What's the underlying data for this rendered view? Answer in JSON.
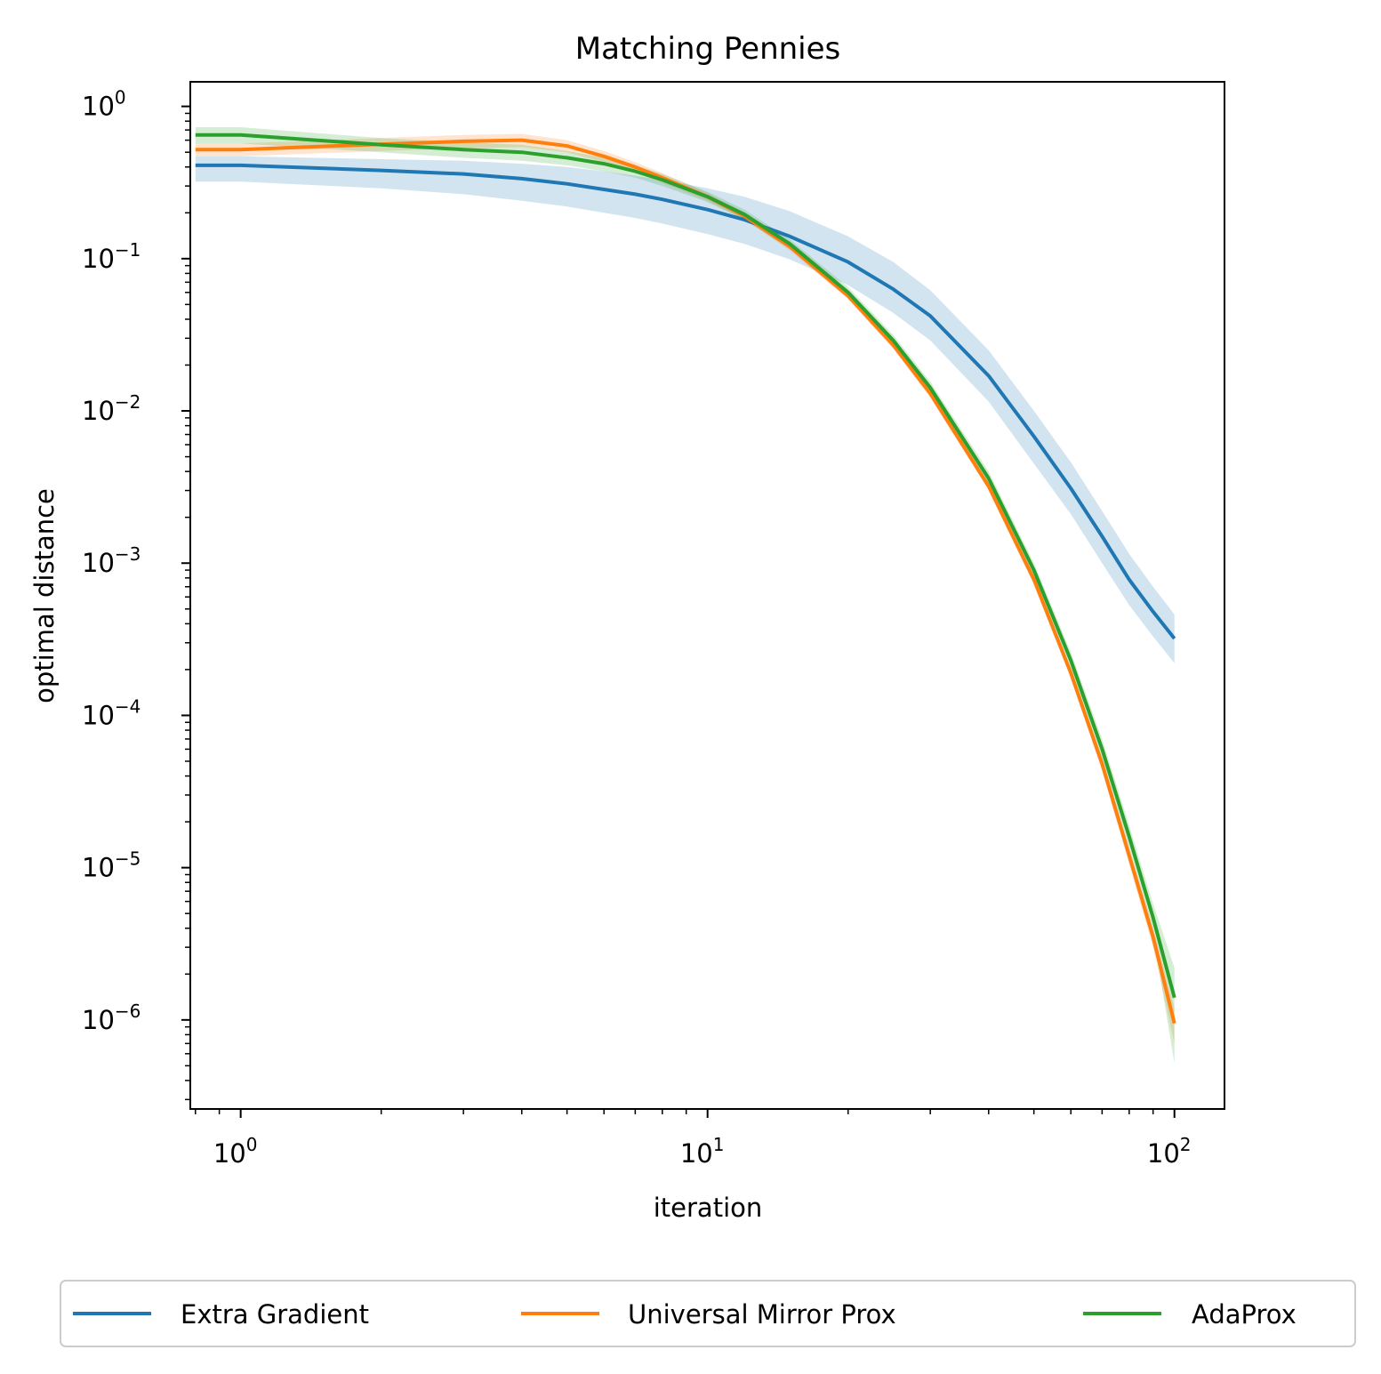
{
  "chart_data": {
    "type": "line",
    "title": "Matching Pennies",
    "xlabel": "iteration",
    "ylabel": "optimal distance",
    "xscale": "log",
    "yscale": "log",
    "xlim": [
      0.78,
      128
    ],
    "ylim": [
      2.6e-07,
      1.45
    ],
    "xticks": [
      {
        "value": 1,
        "base": "10",
        "exp": "0"
      },
      {
        "value": 10,
        "base": "10",
        "exp": "1"
      },
      {
        "value": 100,
        "base": "10",
        "exp": "2"
      }
    ],
    "yticks": [
      {
        "value": 1,
        "base": "10",
        "exp": "0"
      },
      {
        "value": 0.1,
        "base": "10",
        "exp": "−1"
      },
      {
        "value": 0.01,
        "base": "10",
        "exp": "−2"
      },
      {
        "value": 0.001,
        "base": "10",
        "exp": "−3"
      },
      {
        "value": 0.0001,
        "base": "10",
        "exp": "−4"
      },
      {
        "value": 1e-05,
        "base": "10",
        "exp": "−5"
      },
      {
        "value": 1e-06,
        "base": "10",
        "exp": "−6"
      }
    ],
    "grid": false,
    "legend": {
      "placement": "bottom-center-outside",
      "columns": 3
    },
    "x": [
      0.8,
      1,
      2,
      3,
      4,
      5,
      6,
      7,
      8,
      10,
      12,
      15,
      20,
      25,
      30,
      40,
      50,
      60,
      70,
      80,
      90,
      100
    ],
    "series": [
      {
        "name": "Extra Gradient",
        "color": "#1f77b4",
        "values": [
          0.41,
          0.41,
          0.38,
          0.36,
          0.335,
          0.31,
          0.285,
          0.265,
          0.245,
          0.21,
          0.18,
          0.14,
          0.095,
          0.063,
          0.042,
          0.017,
          0.0068,
          0.0031,
          0.0015,
          0.00078,
          0.00048,
          0.00032
        ],
        "band_lower": [
          0.32,
          0.32,
          0.29,
          0.265,
          0.24,
          0.22,
          0.2,
          0.185,
          0.17,
          0.145,
          0.125,
          0.099,
          0.067,
          0.044,
          0.029,
          0.0115,
          0.0045,
          0.0021,
          0.001,
          0.00053,
          0.00033,
          0.00022
        ],
        "band_upper": [
          0.47,
          0.47,
          0.45,
          0.44,
          0.42,
          0.4,
          0.375,
          0.35,
          0.33,
          0.29,
          0.255,
          0.205,
          0.14,
          0.095,
          0.062,
          0.025,
          0.01,
          0.0046,
          0.0022,
          0.00115,
          0.0007,
          0.00046
        ]
      },
      {
        "name": "Universal Mirror Prox",
        "color": "#ff7f0e",
        "values": [
          0.52,
          0.52,
          0.565,
          0.59,
          0.6,
          0.55,
          0.47,
          0.4,
          0.34,
          0.255,
          0.19,
          0.12,
          0.057,
          0.027,
          0.013,
          0.0032,
          0.00078,
          0.00019,
          4.8e-05,
          1.2e-05,
          3.5e-06,
          9.5e-07
        ],
        "band_lower": [
          0.47,
          0.47,
          0.51,
          0.53,
          0.54,
          0.5,
          0.43,
          0.37,
          0.315,
          0.24,
          0.18,
          0.113,
          0.054,
          0.0255,
          0.0122,
          0.003,
          0.00072,
          0.000175,
          4.3e-05,
          1.05e-05,
          3e-06,
          7e-07
        ],
        "band_upper": [
          0.57,
          0.57,
          0.62,
          0.65,
          0.66,
          0.6,
          0.51,
          0.43,
          0.365,
          0.27,
          0.2,
          0.127,
          0.06,
          0.0285,
          0.0138,
          0.0034,
          0.00084,
          0.000205,
          5.3e-05,
          1.35e-05,
          4e-06,
          1.2e-06
        ]
      },
      {
        "name": "AdaProx",
        "color": "#2ca02c",
        "values": [
          0.65,
          0.65,
          0.56,
          0.52,
          0.5,
          0.46,
          0.42,
          0.375,
          0.33,
          0.255,
          0.195,
          0.125,
          0.06,
          0.029,
          0.0142,
          0.0036,
          0.0009,
          0.00023,
          6e-05,
          1.6e-05,
          4.7e-06,
          1.4e-06
        ],
        "band_lower": [
          0.57,
          0.57,
          0.5,
          0.46,
          0.44,
          0.41,
          0.375,
          0.34,
          0.3,
          0.235,
          0.18,
          0.116,
          0.055,
          0.0265,
          0.013,
          0.0032,
          0.0008,
          0.0002,
          5.1e-05,
          1.33e-05,
          3.7e-06,
          5.2e-07
        ],
        "band_upper": [
          0.73,
          0.73,
          0.62,
          0.58,
          0.56,
          0.51,
          0.46,
          0.41,
          0.36,
          0.275,
          0.21,
          0.134,
          0.065,
          0.0315,
          0.0155,
          0.004,
          0.001,
          0.00026,
          7e-05,
          1.9e-05,
          5.8e-06,
          2.2e-06
        ]
      }
    ]
  }
}
